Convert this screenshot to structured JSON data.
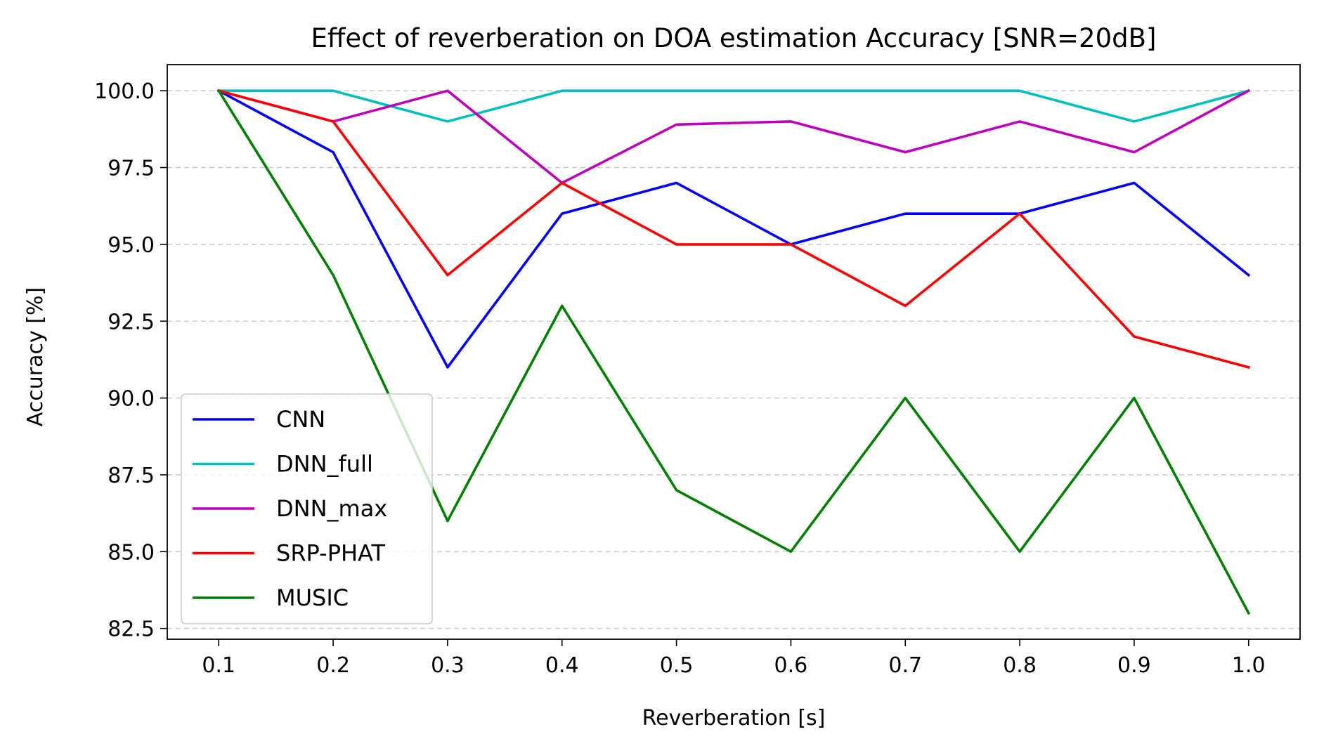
{
  "chart_data": {
    "type": "line",
    "title": "Effect of reverberation on DOA estimation Accuracy [SNR=20dB]",
    "xlabel": "Reverberation [s]",
    "ylabel": "Accuracy [%]",
    "x": [
      0.1,
      0.2,
      0.3,
      0.4,
      0.5,
      0.6,
      0.7,
      0.8,
      0.9,
      1.0
    ],
    "x_ticks": [
      "0.1",
      "0.2",
      "0.3",
      "0.4",
      "0.5",
      "0.6",
      "0.7",
      "0.8",
      "0.9",
      "1.0"
    ],
    "y_ticks": [
      "82.5",
      "85.0",
      "87.5",
      "90.0",
      "92.5",
      "95.0",
      "97.5",
      "100.0"
    ],
    "xlim": [
      0.055,
      1.045
    ],
    "ylim": [
      82.15,
      100.85
    ],
    "grid": "horizontal dashed",
    "legend_position": "lower-left",
    "series": [
      {
        "name": "CNN",
        "color": "#0000ff",
        "values": [
          100,
          98,
          91,
          96,
          97,
          95,
          96,
          96,
          97,
          94
        ]
      },
      {
        "name": "DNN_full",
        "color": "#00bfbf",
        "values": [
          100,
          100,
          99,
          100,
          100,
          100,
          100,
          100,
          99,
          100
        ]
      },
      {
        "name": "DNN_max",
        "color": "#bf00bf",
        "values": [
          100,
          99,
          100,
          97,
          98.9,
          99,
          98,
          99,
          98,
          100
        ]
      },
      {
        "name": "SRP-PHAT",
        "color": "#ff0000",
        "values": [
          100,
          99,
          94,
          97,
          95,
          95,
          93,
          96,
          92,
          91
        ]
      },
      {
        "name": "MUSIC",
        "color": "#008000",
        "values": [
          100,
          94,
          86,
          93,
          87,
          85,
          90,
          85,
          90,
          83
        ]
      }
    ]
  }
}
